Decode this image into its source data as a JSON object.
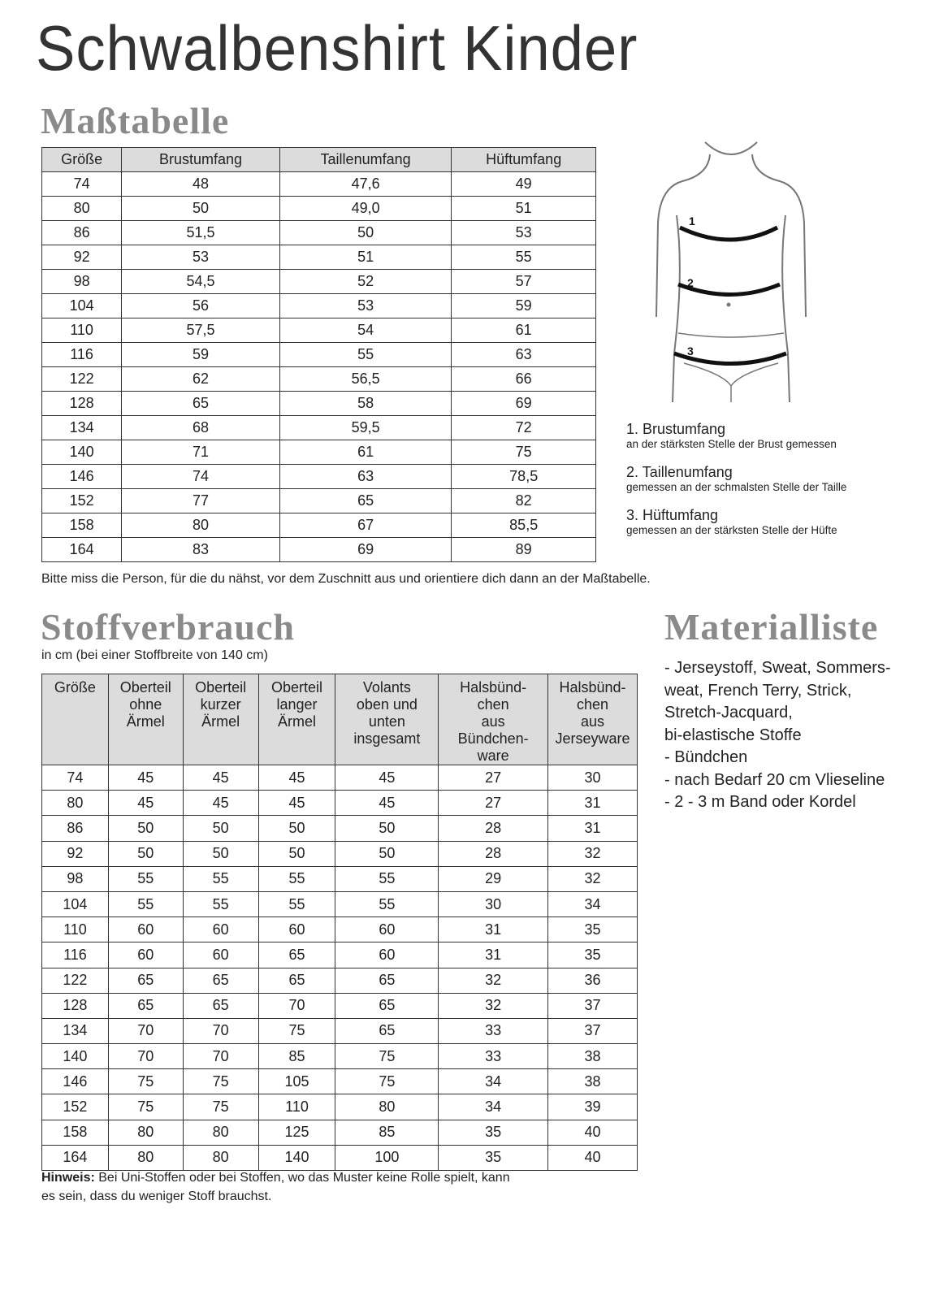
{
  "title": "Schwalbenshirt Kinder",
  "size_table": {
    "heading": "Maßtabelle",
    "columns": [
      "Größe",
      "Brustumfang",
      "Taillenumfang",
      "Hüftumfang"
    ],
    "rows": [
      [
        "74",
        "48",
        "47,6",
        "49"
      ],
      [
        "80",
        "50",
        "49,0",
        "51"
      ],
      [
        "86",
        "51,5",
        "50",
        "53"
      ],
      [
        "92",
        "53",
        "51",
        "55"
      ],
      [
        "98",
        "54,5",
        "52",
        "57"
      ],
      [
        "104",
        "56",
        "53",
        "59"
      ],
      [
        "110",
        "57,5",
        "54",
        "61"
      ],
      [
        "116",
        "59",
        "55",
        "63"
      ],
      [
        "122",
        "62",
        "56,5",
        "66"
      ],
      [
        "128",
        "65",
        "58",
        "69"
      ],
      [
        "134",
        "68",
        "59,5",
        "72"
      ],
      [
        "140",
        "71",
        "61",
        "75"
      ],
      [
        "146",
        "74",
        "63",
        "78,5"
      ],
      [
        "152",
        "77",
        "65",
        "82"
      ],
      [
        "158",
        "80",
        "67",
        "85,5"
      ],
      [
        "164",
        "83",
        "69",
        "89"
      ]
    ],
    "note": "Bitte miss die Person, für die du nähst, vor dem Zuschnitt aus und orientiere dich dann an der Maßtabelle."
  },
  "figure": {
    "markers": [
      "1",
      "2",
      "3"
    ]
  },
  "legend": [
    {
      "title": "1. Brustumfang",
      "desc": "an der stärksten Stelle der Brust gemessen"
    },
    {
      "title": "2. Taillenumfang",
      "desc": "gemessen an der schmalsten Stelle der Taille"
    },
    {
      "title": "3. Hüftumfang",
      "desc": "gemessen an der stärksten Stelle der Hüfte"
    }
  ],
  "fabric_table": {
    "heading": "Stoffverbrauch",
    "subheading": "in cm (bei einer Stoffbreite von 140 cm)",
    "columns": [
      "Größe",
      "Oberteil ohne Ärmel",
      "Oberteil kurzer Ärmel",
      "Oberteil langer Ärmel",
      "Volants oben und unten insgesamt",
      "Halsbünd-chen aus Bündchen-ware",
      "Halsbünd-chen aus Jerseyware"
    ],
    "rows": [
      [
        "74",
        "45",
        "45",
        "45",
        "45",
        "27",
        "30"
      ],
      [
        "80",
        "45",
        "45",
        "45",
        "45",
        "27",
        "31"
      ],
      [
        "86",
        "50",
        "50",
        "50",
        "50",
        "28",
        "31"
      ],
      [
        "92",
        "50",
        "50",
        "50",
        "50",
        "28",
        "32"
      ],
      [
        "98",
        "55",
        "55",
        "55",
        "55",
        "29",
        "32"
      ],
      [
        "104",
        "55",
        "55",
        "55",
        "55",
        "30",
        "34"
      ],
      [
        "110",
        "60",
        "60",
        "60",
        "60",
        "31",
        "35"
      ],
      [
        "116",
        "60",
        "60",
        "65",
        "60",
        "31",
        "35"
      ],
      [
        "122",
        "65",
        "65",
        "65",
        "65",
        "32",
        "36"
      ],
      [
        "128",
        "65",
        "65",
        "70",
        "65",
        "32",
        "37"
      ],
      [
        "134",
        "70",
        "70",
        "75",
        "65",
        "33",
        "37"
      ],
      [
        "140",
        "70",
        "70",
        "85",
        "75",
        "33",
        "38"
      ],
      [
        "146",
        "75",
        "75",
        "105",
        "75",
        "34",
        "38"
      ],
      [
        "152",
        "75",
        "75",
        "110",
        "80",
        "34",
        "39"
      ],
      [
        "158",
        "80",
        "80",
        "125",
        "85",
        "35",
        "40"
      ],
      [
        "164",
        "80",
        "80",
        "140",
        "100",
        "35",
        "40"
      ]
    ],
    "note_label": "Hinweis:",
    "note_line1": " Bei Uni-Stoffen oder bei Stoffen, wo das Muster keine Rolle spielt, kann",
    "note_line2": "es sein, dass du weniger Stoff brauchst."
  },
  "materials": {
    "heading": "Materialliste",
    "lines": [
      "- Jerseystoff, Sweat, Sommers-",
      "weat, French Terry,  Strick,",
      "Stretch-Jacquard,",
      "bi-elastische Stoffe",
      "- Bündchen",
      "- nach Bedarf 20 cm Vlieseline",
      "- 2 - 3 m Band oder Kordel"
    ]
  }
}
